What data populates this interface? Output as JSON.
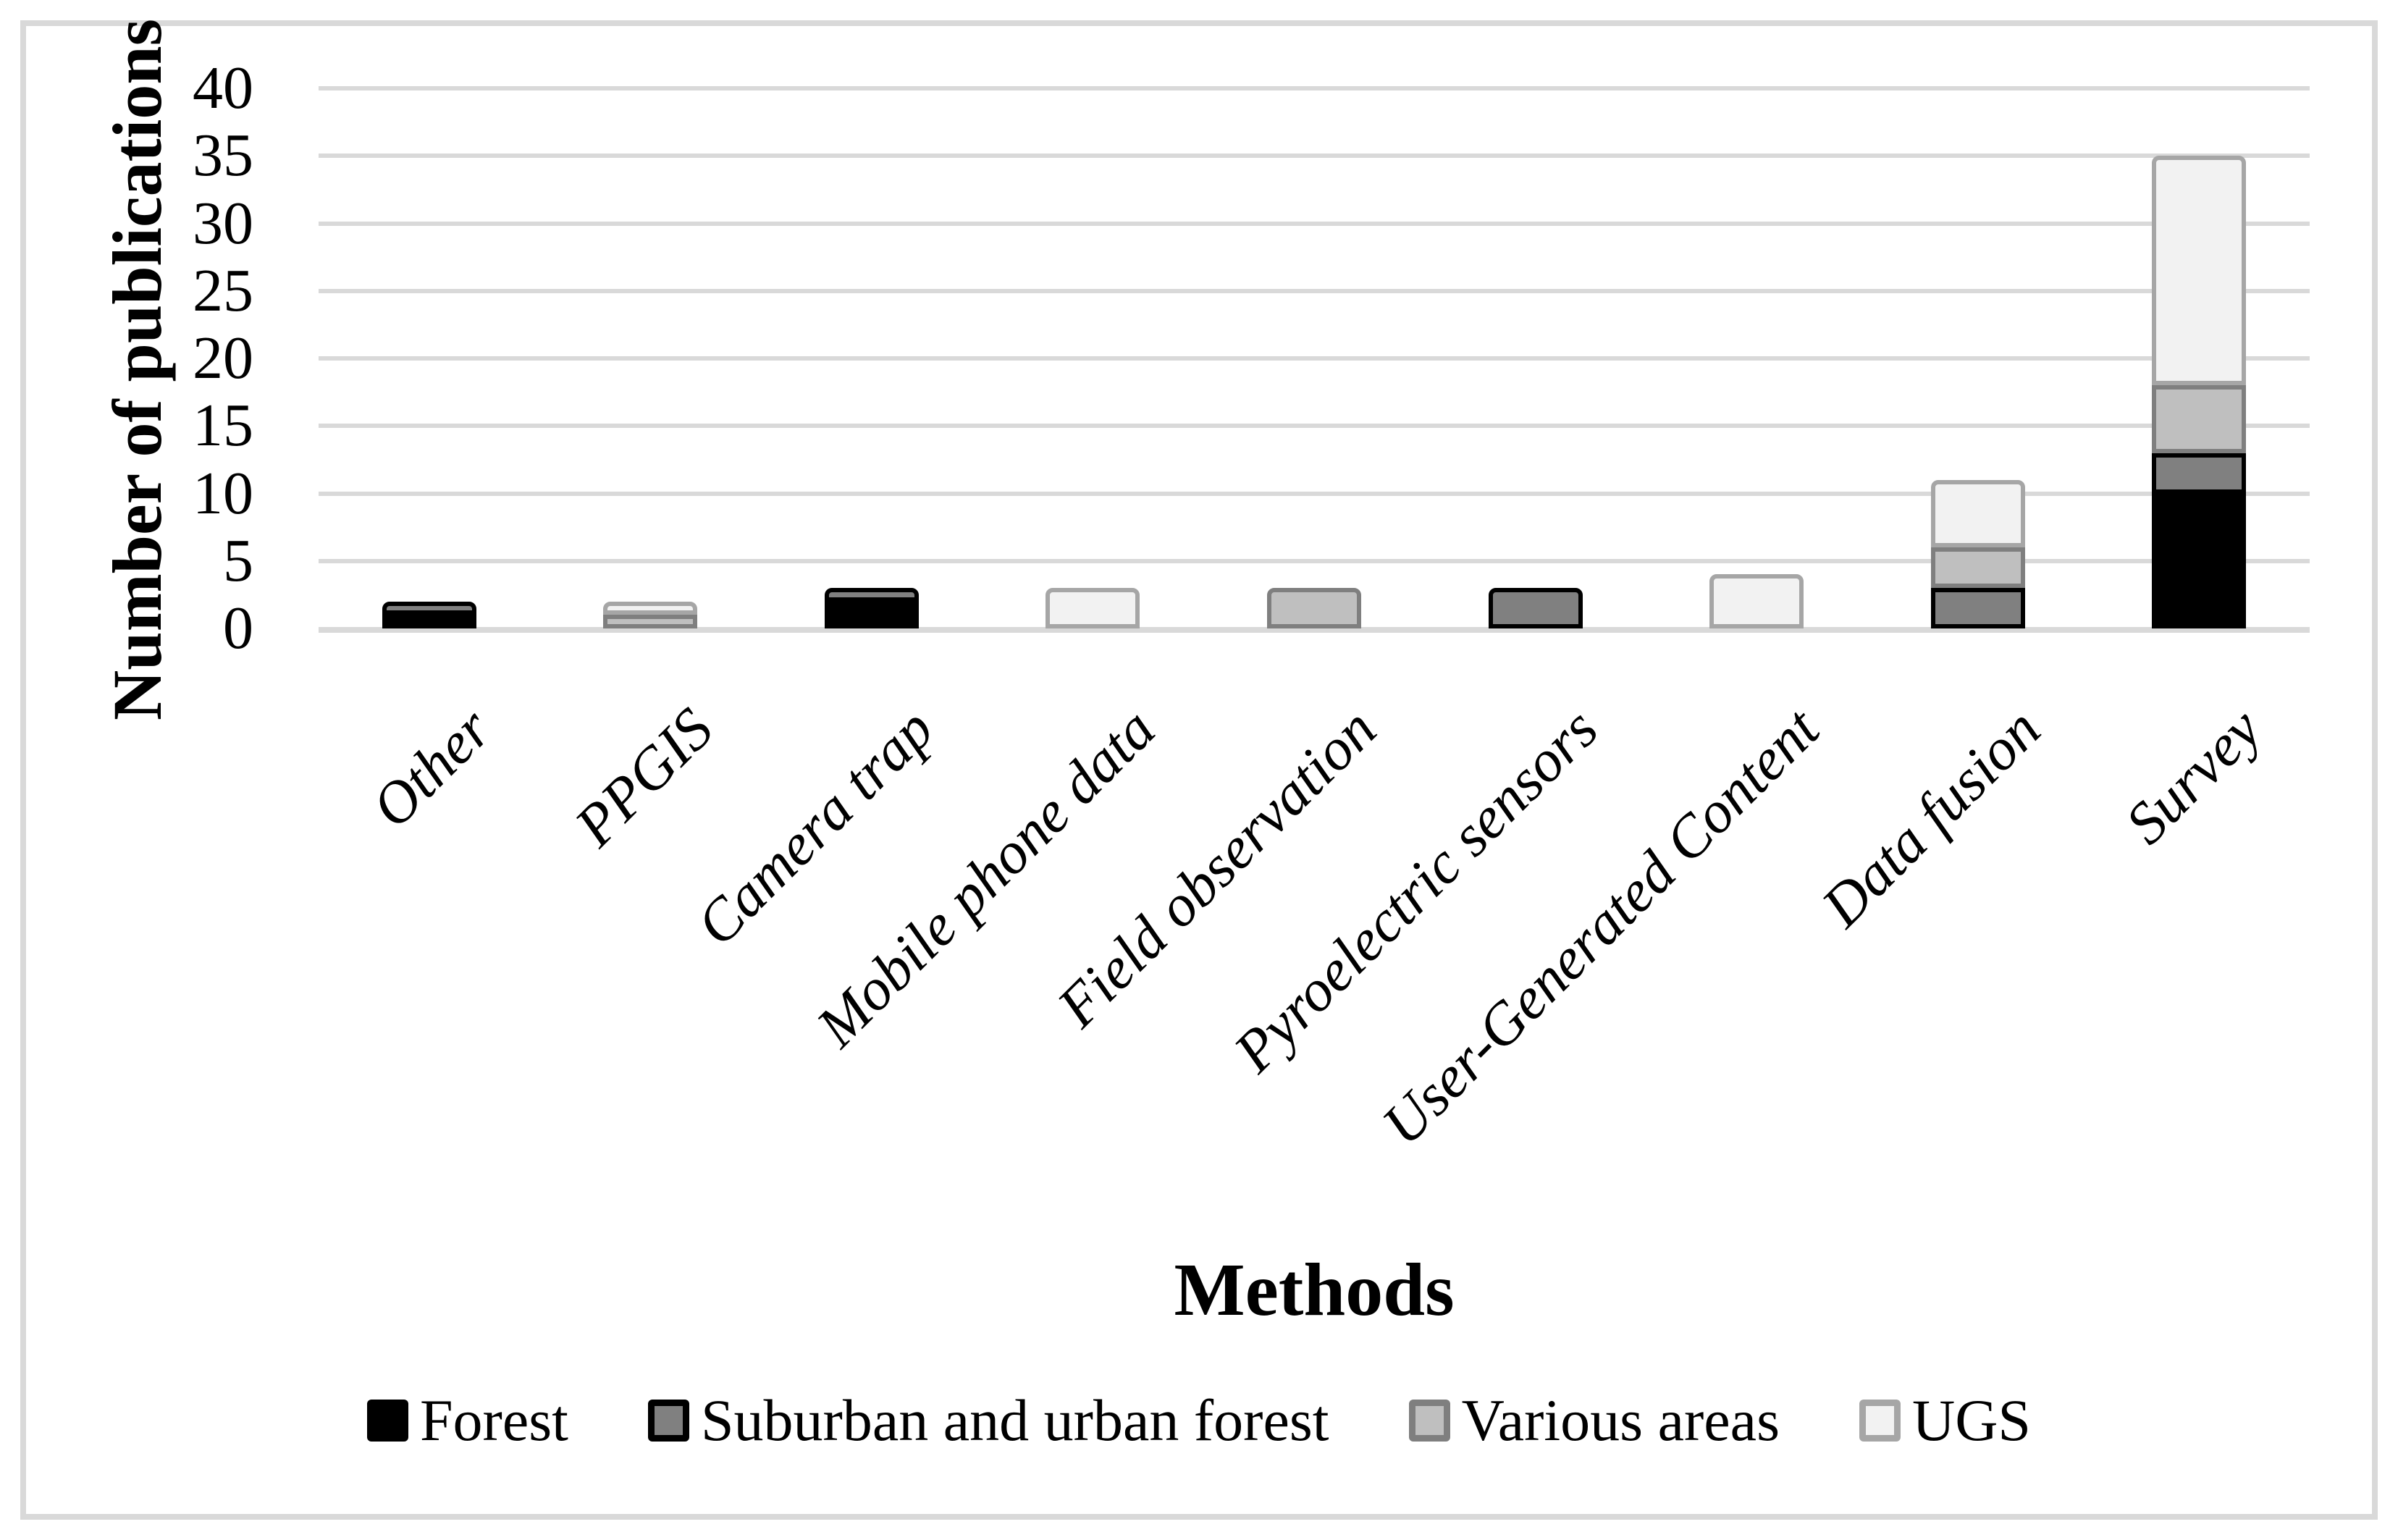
{
  "chart_data": {
    "type": "bar",
    "stacked": true,
    "xlabel": "Methods",
    "ylabel": "Number of publications",
    "ylim": [
      0,
      40
    ],
    "ytick_step": 5,
    "yticks": [
      "0",
      "5",
      "10",
      "15",
      "20",
      "25",
      "30",
      "35",
      "40"
    ],
    "grid": "horizontal",
    "legend_position": "bottom",
    "categories": [
      "Other",
      "PPGIS",
      "Camera trap",
      "Mobile phone data",
      "Field observation",
      "Pyroelectric sensors",
      "User-Generated Content",
      "Data fusion",
      "Survey"
    ],
    "series": [
      {
        "name": "Forest",
        "fill": "#000000",
        "border": "#000000",
        "values": [
          1,
          0,
          2,
          0,
          0,
          0,
          0,
          0,
          10
        ]
      },
      {
        "name": "Suburban and urban forest",
        "fill": "#808080",
        "border": "#000000",
        "values": [
          1,
          0,
          1,
          0,
          0,
          3,
          0,
          3,
          3
        ]
      },
      {
        "name": "Various areas",
        "fill": "#bfbfbf",
        "border": "#7f7f7f",
        "values": [
          0,
          1,
          0,
          0,
          3,
          0,
          0,
          3,
          5
        ]
      },
      {
        "name": "UGS",
        "fill": "#f2f2f2",
        "border": "#a6a6a6",
        "values": [
          0,
          1,
          0,
          3,
          0,
          0,
          4,
          5,
          17
        ]
      }
    ],
    "totals": [
      2,
      2,
      3,
      3,
      3,
      3,
      4,
      11,
      35
    ]
  },
  "colors": {
    "gridline": "#d9d9d9",
    "chart_border": "#d9d9d9",
    "background": "#ffffff",
    "text": "#000000"
  }
}
